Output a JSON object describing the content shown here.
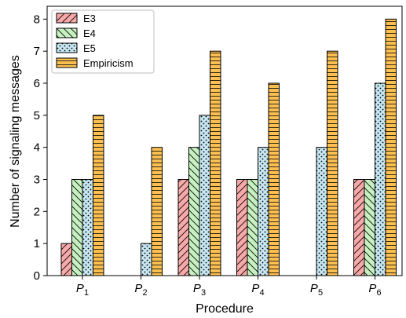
{
  "chart_data": {
    "type": "bar",
    "categories": [
      {
        "base": "P",
        "sub": "1"
      },
      {
        "base": "P",
        "sub": "2"
      },
      {
        "base": "P",
        "sub": "3"
      },
      {
        "base": "P",
        "sub": "4"
      },
      {
        "base": "P",
        "sub": "5"
      },
      {
        "base": "P",
        "sub": "6"
      }
    ],
    "series": [
      {
        "name": "E3",
        "values": [
          1,
          0,
          3,
          3,
          0,
          3
        ],
        "fill": "#f7a8a8",
        "pattern": "diagonal"
      },
      {
        "name": "E4",
        "values": [
          3,
          0,
          4,
          3,
          0,
          3
        ],
        "fill": "#c6f0c0",
        "pattern": "back-diagonal"
      },
      {
        "name": "E5",
        "values": [
          3,
          1,
          5,
          4,
          4,
          6
        ],
        "fill": "#c6e6f2",
        "pattern": "dots"
      },
      {
        "name": "Empiricism",
        "values": [
          5,
          4,
          7,
          6,
          7,
          8
        ],
        "fill": "#fbbf52",
        "pattern": "horizontal"
      }
    ],
    "xlabel": "Procedure",
    "ylabel": "Number of signaling messages",
    "ylim": [
      0,
      8.4
    ],
    "yticks": [
      "0",
      "1",
      "2",
      "3",
      "4",
      "5",
      "6",
      "7",
      "8"
    ],
    "legend_position": "top-left",
    "grid": false
  }
}
